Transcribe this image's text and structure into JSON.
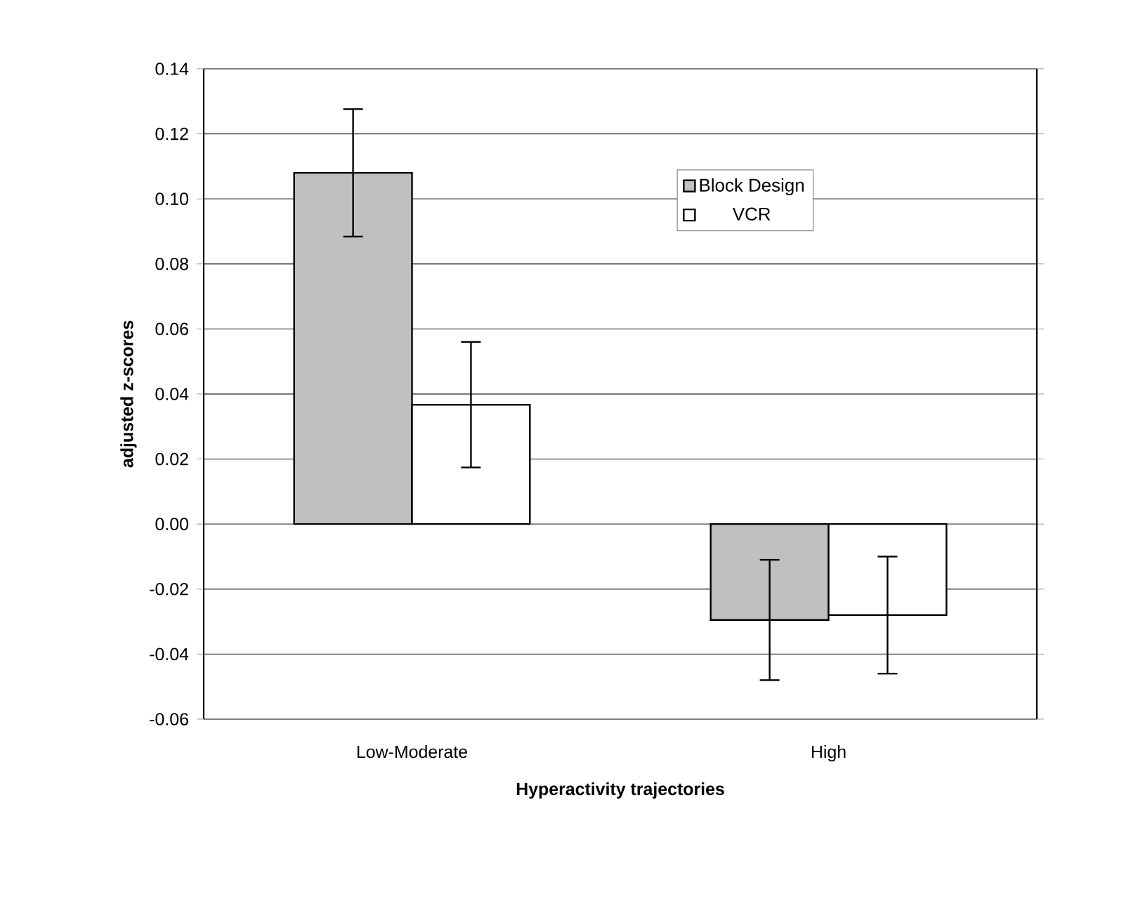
{
  "chart_data": {
    "type": "bar",
    "xlabel": "Hyperactivity trajectories",
    "ylabel": "adjusted z-scores",
    "categories": [
      "Low-Moderate",
      "High"
    ],
    "series": [
      {
        "name": "Block Design",
        "color": "#c0c0c0",
        "values": [
          0.108,
          -0.0295
        ],
        "errors": [
          0.0196,
          0.0185
        ]
      },
      {
        "name": "VCR",
        "color": "#ffffff",
        "values": [
          0.0367,
          -0.028
        ],
        "errors": [
          0.0193,
          0.018
        ]
      }
    ],
    "ylim": [
      -0.06,
      0.14
    ],
    "yticks": [
      {
        "value": -0.06,
        "label": "-0.06"
      },
      {
        "value": -0.04,
        "label": "-0.04"
      },
      {
        "value": -0.02,
        "label": "-0.02"
      },
      {
        "value": 0,
        "label": "0.00"
      },
      {
        "value": 0.02,
        "label": "0.02"
      },
      {
        "value": 0.04,
        "label": "0.04"
      },
      {
        "value": 0.06,
        "label": "0.06"
      },
      {
        "value": 0.08,
        "label": "0.08"
      },
      {
        "value": 0.1,
        "label": "0.10"
      },
      {
        "value": 0.12,
        "label": "0.12"
      },
      {
        "value": 0.14,
        "label": "0.14"
      }
    ],
    "grid": "y",
    "legend": "top right"
  }
}
